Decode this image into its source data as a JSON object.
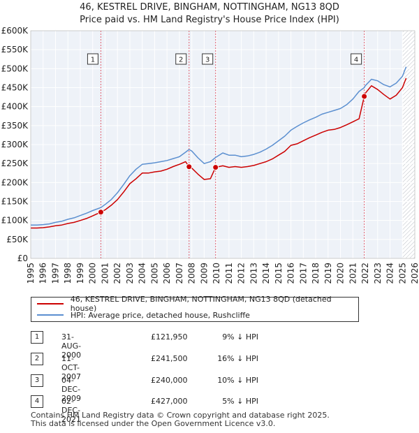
{
  "chart_data": {
    "type": "line",
    "title": "46, KESTREL DRIVE, BINGHAM, NOTTINGHAM, NG13 8QD",
    "subtitle": "Price paid vs. HM Land Registry's House Price Index (HPI)",
    "ylim": [
      0,
      600000
    ],
    "xlim": [
      1995,
      2026
    ],
    "yticks": [
      0,
      50000,
      100000,
      150000,
      200000,
      250000,
      300000,
      350000,
      400000,
      450000,
      500000,
      550000,
      600000
    ],
    "ytick_labels": [
      "£0",
      "£50K",
      "£100K",
      "£150K",
      "£200K",
      "£250K",
      "£300K",
      "£350K",
      "£400K",
      "£450K",
      "£500K",
      "£550K",
      "£600K"
    ],
    "xtick_labels": [
      "1995",
      "1996",
      "1997",
      "1998",
      "1999",
      "2000",
      "2001",
      "2002",
      "2003",
      "2004",
      "2005",
      "2006",
      "2007",
      "2008",
      "2009",
      "2010",
      "2011",
      "2012",
      "2013",
      "2014",
      "2015",
      "2016",
      "2017",
      "2018",
      "2019",
      "2020",
      "2021",
      "2022",
      "2023",
      "2024",
      "2025",
      "2026"
    ],
    "series": [
      {
        "name": "46, KESTREL DRIVE, BINGHAM, NOTTINGHAM, NG13 8QD (detached house)",
        "color": "#cc0000",
        "x": [
          1995.0,
          1995.5,
          1996.0,
          1996.5,
          1997.0,
          1997.5,
          1998.0,
          1998.5,
          1999.0,
          1999.5,
          2000.0,
          2000.66,
          2001.0,
          2001.5,
          2002.0,
          2002.5,
          2003.0,
          2003.5,
          2004.0,
          2004.5,
          2005.0,
          2005.5,
          2006.0,
          2006.5,
          2007.0,
          2007.5,
          2007.78,
          2008.0,
          2008.5,
          2009.0,
          2009.5,
          2009.92,
          2010.5,
          2011.0,
          2011.5,
          2012.0,
          2012.5,
          2013.0,
          2013.5,
          2014.0,
          2014.5,
          2015.0,
          2015.5,
          2016.0,
          2016.5,
          2017.0,
          2017.5,
          2018.0,
          2018.5,
          2019.0,
          2019.5,
          2020.0,
          2020.5,
          2021.0,
          2021.5,
          2021.92,
          2022.0,
          2022.5,
          2023.0,
          2023.5,
          2024.0,
          2024.5,
          2025.0,
          2025.3
        ],
        "values": [
          80000,
          80000,
          81000,
          83000,
          86000,
          88000,
          92000,
          95000,
          100000,
          105000,
          112000,
          121950,
          128000,
          140000,
          155000,
          175000,
          197000,
          210000,
          225000,
          225000,
          228000,
          230000,
          235000,
          242000,
          248000,
          255000,
          241500,
          238000,
          222000,
          208000,
          210000,
          240000,
          244000,
          240000,
          242000,
          240000,
          242000,
          245000,
          250000,
          255000,
          262000,
          272000,
          282000,
          298000,
          302000,
          310000,
          318000,
          325000,
          332000,
          338000,
          340000,
          345000,
          352000,
          360000,
          368000,
          427000,
          435000,
          455000,
          445000,
          432000,
          420000,
          430000,
          450000,
          475000
        ]
      },
      {
        "name": "HPI: Average price, detached house, Rushcliffe",
        "color": "#5b8fd0",
        "x": [
          1995.0,
          1995.5,
          1996.0,
          1996.5,
          1997.0,
          1997.5,
          1998.0,
          1998.5,
          1999.0,
          1999.5,
          2000.0,
          2000.66,
          2001.0,
          2001.5,
          2002.0,
          2002.5,
          2003.0,
          2003.5,
          2004.0,
          2004.5,
          2005.0,
          2005.5,
          2006.0,
          2006.5,
          2007.0,
          2007.5,
          2007.78,
          2008.0,
          2008.5,
          2009.0,
          2009.5,
          2009.92,
          2010.5,
          2011.0,
          2011.5,
          2012.0,
          2012.5,
          2013.0,
          2013.5,
          2014.0,
          2014.5,
          2015.0,
          2015.5,
          2016.0,
          2016.5,
          2017.0,
          2017.5,
          2018.0,
          2018.5,
          2019.0,
          2019.5,
          2020.0,
          2020.5,
          2021.0,
          2021.5,
          2021.92,
          2022.0,
          2022.5,
          2023.0,
          2023.5,
          2024.0,
          2024.5,
          2025.0,
          2025.3
        ],
        "values": [
          88000,
          88000,
          89000,
          91000,
          95000,
          98000,
          103000,
          107000,
          113000,
          119000,
          126000,
          134000,
          142000,
          155000,
          173000,
          195000,
          218000,
          235000,
          248000,
          250000,
          252000,
          255000,
          258000,
          263000,
          268000,
          280000,
          287000,
          283000,
          265000,
          250000,
          255000,
          266000,
          278000,
          272000,
          272000,
          268000,
          270000,
          274000,
          280000,
          288000,
          298000,
          310000,
          322000,
          338000,
          348000,
          357000,
          365000,
          372000,
          380000,
          385000,
          390000,
          395000,
          405000,
          420000,
          440000,
          450000,
          455000,
          472000,
          468000,
          458000,
          452000,
          462000,
          480000,
          505000
        ]
      }
    ],
    "sales": [
      {
        "num": "1",
        "x": 2000.66,
        "value": 121950
      },
      {
        "num": "2",
        "x": 2007.78,
        "value": 241500
      },
      {
        "num": "3",
        "x": 2009.92,
        "value": 240000
      },
      {
        "num": "4",
        "x": 2021.92,
        "value": 427000
      }
    ],
    "forecast_start": 2025.0
  },
  "legend": {
    "property_label": "46, KESTREL DRIVE, BINGHAM, NOTTINGHAM, NG13 8QD (detached house)",
    "hpi_label": "HPI: Average price, detached house, Rushcliffe"
  },
  "sales_table": [
    {
      "num": "1",
      "date": "31-AUG-2000",
      "price": "£121,950",
      "hpi": "9% ↓ HPI"
    },
    {
      "num": "2",
      "date": "11-OCT-2007",
      "price": "£241,500",
      "hpi": "16% ↓ HPI"
    },
    {
      "num": "3",
      "date": "04-DEC-2009",
      "price": "£240,000",
      "hpi": "10% ↓ HPI"
    },
    {
      "num": "4",
      "date": "02-DEC-2021",
      "price": "£427,000",
      "hpi": "5% ↓ HPI"
    }
  ],
  "footer": {
    "line1": "Contains HM Land Registry data © Crown copyright and database right 2025.",
    "line2": "This data is licensed under the Open Government Licence v3.0."
  }
}
